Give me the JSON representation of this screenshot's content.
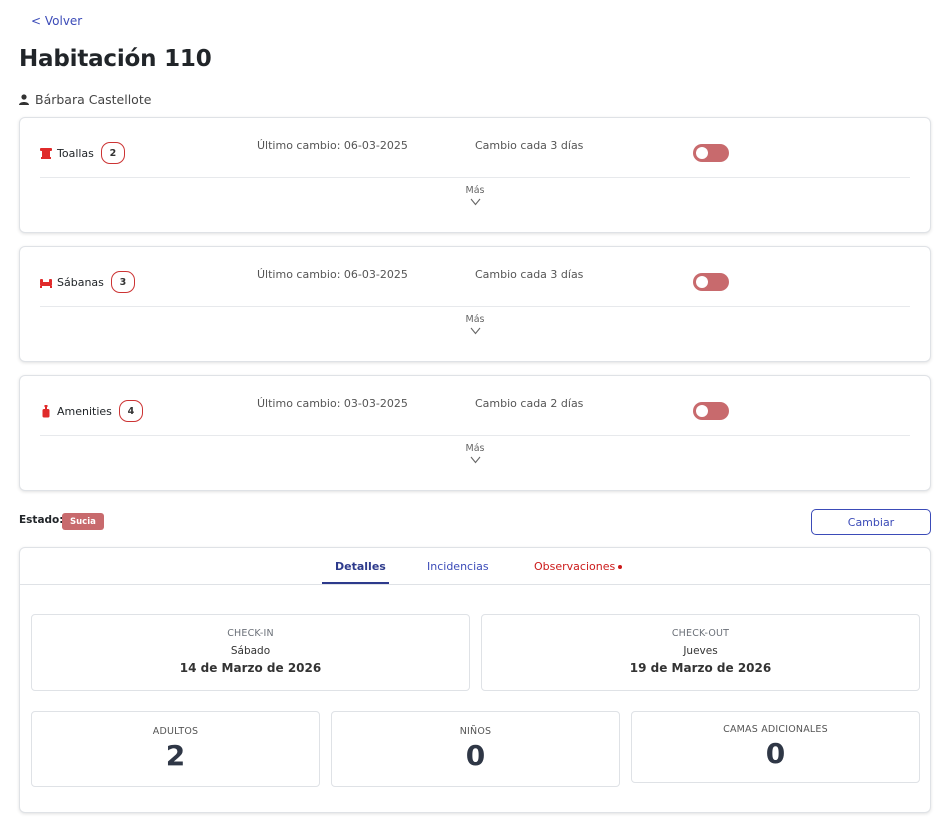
{
  "nav": {
    "back_label": "< Volver"
  },
  "page": {
    "title": "Habitación 110",
    "guest_name": "Bárbara Castellote"
  },
  "items": [
    {
      "name": "Toallas",
      "count": "2",
      "last_change": "Último cambio: 06-03-2025",
      "frequency": "Cambio cada 3 días",
      "toggle_on": false,
      "more_label": "Más",
      "icon": "towel-icon"
    },
    {
      "name": "Sábanas",
      "count": "3",
      "last_change": "Último cambio: 06-03-2025",
      "frequency": "Cambio cada 3 días",
      "toggle_on": false,
      "more_label": "Más",
      "icon": "bed-icon"
    },
    {
      "name": "Amenities",
      "count": "4",
      "last_change": "Último cambio: 03-03-2025",
      "frequency": "Cambio cada 2 días",
      "toggle_on": false,
      "more_label": "Más",
      "icon": "bottle-icon"
    }
  ],
  "status": {
    "label": "Estado:",
    "value": "Sucia",
    "color": "#c86a6d",
    "change_button": "Cambiar"
  },
  "tabs": [
    {
      "label": "Detalles",
      "active": true
    },
    {
      "label": "Incidencias",
      "active": false
    },
    {
      "label": "Observaciones",
      "active": false,
      "alert": true
    }
  ],
  "checkin": {
    "label": "CHECK-IN",
    "day": "Sábado",
    "date": "14 de Marzo de 2026"
  },
  "checkout": {
    "label": "CHECK-OUT",
    "day": "Jueves",
    "date": "19 de Marzo de 2026"
  },
  "stats": [
    {
      "label": "ADULTOS",
      "value": "2"
    },
    {
      "label": "NIÑOS",
      "value": "0"
    },
    {
      "label": "CAMAS ADICIONALES",
      "value": "0"
    }
  ],
  "colors": {
    "accent": "#3b4bb8",
    "danger": "#cc1a1a",
    "toggle_off": "#c86a6d",
    "icon_red": "#e02a2a"
  }
}
